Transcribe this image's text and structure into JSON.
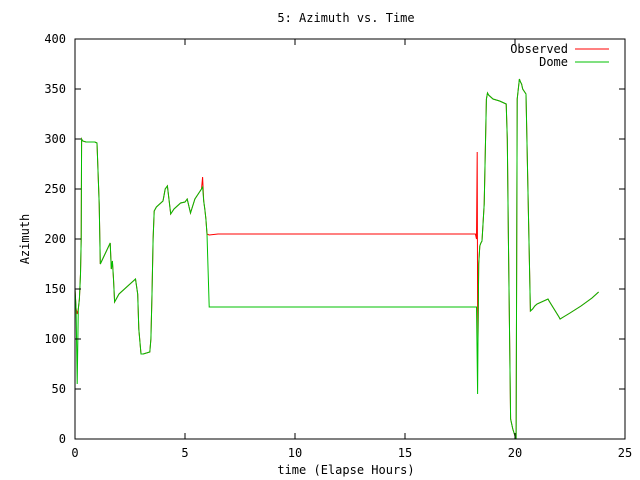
{
  "chart_data": {
    "type": "line",
    "title": "5: Azimuth vs. Time",
    "xlabel": "time (Elapse Hours)",
    "ylabel": "Azimuth",
    "xlim": [
      0,
      25
    ],
    "ylim": [
      0,
      400
    ],
    "xticks": [
      0,
      5,
      10,
      15,
      20,
      25
    ],
    "yticks": [
      0,
      50,
      100,
      150,
      200,
      250,
      300,
      350,
      400
    ],
    "grid": false,
    "legend_position": "top-right",
    "series": [
      {
        "name": "Observed",
        "color": "#ff0000",
        "x": [
          0,
          0.05,
          0.1,
          0.15,
          0.2,
          0.25,
          0.28,
          0.3,
          0.35,
          0.5,
          0.9,
          1.0,
          1.1,
          1.15,
          1.3,
          1.6,
          1.65,
          1.7,
          1.75,
          1.8,
          2.0,
          2.5,
          2.75,
          2.85,
          2.9,
          3.0,
          3.1,
          3.4,
          3.45,
          3.5,
          3.55,
          3.6,
          3.7,
          4.0,
          4.1,
          4.2,
          4.35,
          4.5,
          4.8,
          5.0,
          5.1,
          5.25,
          5.45,
          5.6,
          5.75,
          5.8,
          5.85,
          5.9,
          5.95,
          6.0,
          6.1,
          6.5,
          18.2,
          18.25,
          18.28,
          18.3,
          18.32,
          18.35,
          18.4,
          18.45,
          18.5,
          18.6,
          18.7,
          18.75,
          18.8,
          19.0,
          19.3,
          19.6,
          19.65,
          19.7,
          19.8,
          19.9,
          20.0,
          20.05,
          20.1,
          20.2,
          20.25,
          20.3,
          20.35,
          20.5,
          20.7,
          20.8,
          20.9,
          21.0,
          21.5,
          21.55,
          22.0,
          22.05,
          22.2,
          22.5,
          23.0,
          23.5,
          23.8
        ],
        "y": [
          150,
          130,
          125,
          130,
          140,
          165,
          200,
          300,
          298,
          297,
          297,
          296,
          235,
          175,
          182,
          196,
          170,
          178,
          160,
          137,
          145,
          155,
          160,
          145,
          110,
          85,
          85,
          87,
          100,
          145,
          200,
          228,
          232,
          238,
          250,
          253,
          225,
          230,
          236,
          237,
          240,
          226,
          240,
          245,
          250,
          262,
          238,
          230,
          220,
          205,
          204,
          205,
          205,
          200,
          287,
          130,
          100,
          175,
          193,
          196,
          198,
          235,
          340,
          346,
          344,
          340,
          338,
          335,
          300,
          200,
          20,
          10,
          3,
          0,
          340,
          360,
          357,
          355,
          350,
          345,
          128,
          130,
          133,
          135,
          140,
          138,
          122,
          120,
          122,
          126,
          133,
          141,
          147
        ]
      },
      {
        "name": "Dome",
        "color": "#00c000",
        "x": [
          0,
          0.05,
          0.1,
          0.15,
          0.2,
          0.25,
          0.28,
          0.3,
          0.35,
          0.5,
          0.9,
          1.0,
          1.1,
          1.15,
          1.3,
          1.6,
          1.65,
          1.7,
          1.75,
          1.8,
          2.0,
          2.5,
          2.75,
          2.85,
          2.9,
          3.0,
          3.1,
          3.4,
          3.45,
          3.5,
          3.55,
          3.6,
          3.7,
          4.0,
          4.1,
          4.2,
          4.35,
          4.5,
          4.8,
          5.0,
          5.1,
          5.25,
          5.45,
          5.6,
          5.75,
          5.8,
          5.85,
          5.9,
          5.95,
          6.0,
          6.1,
          18.2,
          18.25,
          18.3,
          18.32,
          18.35,
          18.4,
          18.45,
          18.5,
          18.6,
          18.7,
          18.75,
          18.8,
          19.0,
          19.3,
          19.6,
          19.65,
          19.7,
          19.8,
          19.9,
          20.0,
          20.05,
          20.1,
          20.2,
          20.25,
          20.3,
          20.35,
          20.5,
          20.7,
          20.8,
          20.9,
          21.0,
          21.5,
          21.55,
          22.0,
          22.05,
          22.2,
          22.5,
          23.0,
          23.5,
          23.8
        ],
        "y": [
          150,
          130,
          55,
          130,
          140,
          165,
          200,
          300,
          298,
          297,
          297,
          296,
          235,
          175,
          182,
          196,
          170,
          178,
          160,
          137,
          145,
          155,
          160,
          145,
          110,
          85,
          85,
          87,
          100,
          145,
          200,
          228,
          232,
          238,
          250,
          253,
          225,
          230,
          236,
          237,
          240,
          226,
          240,
          245,
          250,
          252,
          238,
          230,
          220,
          205,
          132,
          132,
          132,
          45,
          100,
          175,
          193,
          196,
          198,
          235,
          340,
          346,
          344,
          340,
          338,
          335,
          300,
          200,
          20,
          10,
          3,
          0,
          340,
          360,
          357,
          355,
          350,
          345,
          128,
          130,
          133,
          135,
          140,
          138,
          122,
          120,
          122,
          126,
          133,
          141,
          147
        ]
      }
    ]
  }
}
